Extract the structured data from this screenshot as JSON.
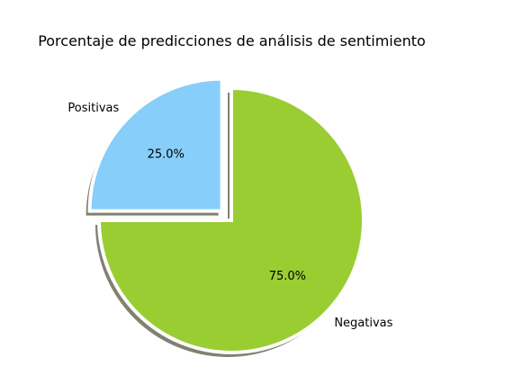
{
  "chart_data": {
    "type": "pie",
    "title": "Porcentaje de predicciones de análisis de sentimiento",
    "slices": [
      {
        "label": "Positivas",
        "value": 25.0,
        "pct_label": "25.0%",
        "color": "#87CEFA",
        "exploded": true
      },
      {
        "label": "Negativas",
        "value": 75.0,
        "pct_label": "75.0%",
        "color": "#9ACD32",
        "exploded": false
      }
    ],
    "start_angle_deg": 90,
    "direction": "counterclockwise",
    "shadow": true,
    "edge_color": "#ffffff"
  }
}
